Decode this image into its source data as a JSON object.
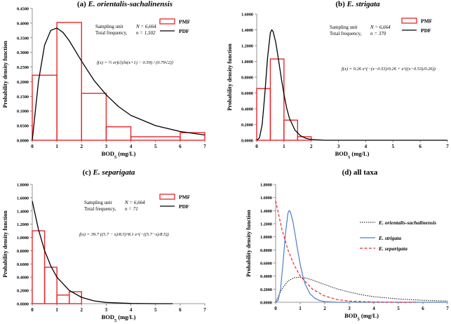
{
  "chart_data": [
    {
      "type": "bar",
      "panel_label": "(a)",
      "title": "E. orientalis-sachalinensis",
      "xlabel": "BOD5 (mg/L)",
      "ylabel": "Probability density function",
      "xlim": [
        0,
        7
      ],
      "ylim": [
        0,
        0.45
      ],
      "xticks": [
        "0",
        "1",
        "2",
        "3",
        "4",
        "5",
        "6",
        "7"
      ],
      "yticks": [
        "0.0000",
        "0.0500",
        "0.1000",
        "0.1500",
        "0.2000",
        "0.2500",
        "0.3000",
        "0.3500",
        "0.4000",
        "0.4500"
      ],
      "grid": false,
      "legend_position": "top-right",
      "info": [
        "Sampling unit",
        "N = 6,664",
        "Total frequency,",
        "n = 1,502"
      ],
      "formula": "f(x) = ½ erfc[(ln(x+1) − 0.59) / (0.79√2)]",
      "series": [
        {
          "name": "PMF",
          "kind": "histogram",
          "color": "#e8262a",
          "bins": [
            [
              0,
              1
            ],
            [
              1,
              2
            ],
            [
              2,
              3
            ],
            [
              3,
              4
            ],
            [
              4,
              6
            ],
            [
              6,
              7
            ]
          ],
          "values": [
            0.222,
            0.402,
            0.16,
            0.046,
            0.012,
            0.026
          ]
        },
        {
          "name": "PDF",
          "kind": "line",
          "color": "#000000",
          "x": [
            0,
            0.25,
            0.5,
            0.75,
            1.0,
            1.25,
            1.5,
            2.0,
            2.5,
            3.0,
            3.5,
            4.0,
            5.0,
            6.0,
            7.0
          ],
          "y": [
            0.0,
            0.2,
            0.325,
            0.375,
            0.383,
            0.368,
            0.34,
            0.27,
            0.205,
            0.155,
            0.115,
            0.085,
            0.05,
            0.03,
            0.018
          ]
        }
      ]
    },
    {
      "type": "bar",
      "panel_label": "(b)",
      "title": "E. strigata",
      "xlabel": "BOD5 (mg/L)",
      "ylabel": "Probability density function",
      "xlim": [
        0,
        7
      ],
      "ylim": [
        0,
        1.6
      ],
      "xticks": [
        "0",
        "1",
        "2",
        "3",
        "4",
        "5",
        "6",
        "7"
      ],
      "yticks": [
        "0.0000",
        "0.2000",
        "0.4000",
        "0.6000",
        "0.8000",
        "1.0000",
        "1.2000",
        "1.4000",
        "1.6000"
      ],
      "grid": false,
      "legend_position": "top-right",
      "info": [
        "Sampling unit",
        "N = 6,664",
        "Total frequency,",
        "n = 370"
      ],
      "formula": "f(x) = 0.26 e^(−(x−0.53)/0.26 + e^((x−0.53)/0.26))",
      "series": [
        {
          "name": "PMF",
          "kind": "histogram",
          "color": "#e8262a",
          "bins": [
            [
              0,
              0.5
            ],
            [
              0.5,
              1
            ],
            [
              1,
              1.5
            ],
            [
              1.5,
              2
            ]
          ],
          "values": [
            0.655,
            1.03,
            0.255,
            0.045
          ]
        },
        {
          "name": "PDF",
          "kind": "line",
          "color": "#000000",
          "x": [
            0,
            0.1,
            0.2,
            0.3,
            0.4,
            0.5,
            0.55,
            0.6,
            0.7,
            0.8,
            0.9,
            1.0,
            1.1,
            1.2,
            1.4,
            1.6,
            1.8,
            2.0,
            2.5,
            3.0,
            7.0
          ],
          "y": [
            0.0,
            0.03,
            0.2,
            0.6,
            1.05,
            1.36,
            1.4,
            1.38,
            1.24,
            1.02,
            0.79,
            0.58,
            0.41,
            0.28,
            0.13,
            0.06,
            0.025,
            0.01,
            0.0,
            0.0,
            0.0
          ]
        }
      ]
    },
    {
      "type": "bar",
      "panel_label": "(c)",
      "title": "E. separigata",
      "xlabel": "BOD5 (mg/L)",
      "ylabel": "Probability density function",
      "xlim": [
        0,
        7
      ],
      "ylim": [
        0,
        1.8
      ],
      "xticks": [
        "0",
        "1",
        "2",
        "3",
        "4",
        "5",
        "6",
        "7"
      ],
      "yticks": [
        "0.0000",
        "0.2000",
        "0.4000",
        "0.6000",
        "0.8000",
        "1.0000",
        "1.2000",
        "1.4000",
        "1.6000",
        "1.8000"
      ],
      "grid": false,
      "legend_position": "top-right",
      "info": [
        "Sampling unit",
        "N = 6,664",
        "Total frequency,",
        "n = 71"
      ],
      "formula": "f(x) = 39.7 ((5.7 − x)/8.5)^8.1 e^(−((5.7−x)/8.5))",
      "series": [
        {
          "name": "PMF",
          "kind": "histogram",
          "color": "#e8262a",
          "bins": [
            [
              0,
              0.5
            ],
            [
              0.5,
              1
            ],
            [
              1,
              1.5
            ],
            [
              1.5,
              2
            ]
          ],
          "values": [
            1.1,
            0.55,
            0.13,
            0.18
          ]
        },
        {
          "name": "PDF",
          "kind": "line",
          "color": "#000000",
          "x": [
            0,
            0.25,
            0.5,
            0.75,
            1.0,
            1.5,
            2.0,
            2.5,
            3.0,
            4.0,
            5.0,
            5.7
          ],
          "y": [
            1.55,
            1.12,
            0.8,
            0.57,
            0.4,
            0.2,
            0.095,
            0.042,
            0.018,
            0.003,
            0.0,
            0.0
          ]
        }
      ]
    },
    {
      "type": "line",
      "panel_label": "(d)",
      "title": "all taxa",
      "xlabel": "BOD5 (mg/L)",
      "ylabel": "Probability density function",
      "xlim": [
        0,
        7
      ],
      "ylim": [
        0,
        1.8
      ],
      "xticks": [
        "0",
        "1",
        "2",
        "3",
        "4",
        "5",
        "6",
        "7"
      ],
      "yticks": [
        "0.0000",
        "0.2000",
        "0.4000",
        "0.6000",
        "0.8000",
        "1.0000",
        "1.2000",
        "1.4000",
        "1.6000",
        "1.8000"
      ],
      "grid": false,
      "legend_position": "right",
      "series": [
        {
          "name": "E. orientalis-sachalinensis",
          "color": "#333333",
          "dash": "dotted",
          "x": [
            0,
            0.25,
            0.5,
            0.75,
            1.0,
            1.25,
            1.5,
            2.0,
            2.5,
            3.0,
            3.5,
            4.0,
            5.0,
            6.0,
            7.0
          ],
          "y": [
            0.0,
            0.2,
            0.325,
            0.375,
            0.383,
            0.368,
            0.34,
            0.27,
            0.205,
            0.155,
            0.115,
            0.085,
            0.05,
            0.03,
            0.018
          ]
        },
        {
          "name": "E. strigata",
          "color": "#4a7ec7",
          "dash": "solid",
          "x": [
            0,
            0.1,
            0.2,
            0.3,
            0.4,
            0.5,
            0.55,
            0.6,
            0.7,
            0.8,
            0.9,
            1.0,
            1.1,
            1.2,
            1.4,
            1.6,
            1.8,
            2.0,
            2.5,
            3.0,
            7.0
          ],
          "y": [
            0.0,
            0.03,
            0.2,
            0.6,
            1.05,
            1.36,
            1.4,
            1.38,
            1.24,
            1.02,
            0.79,
            0.58,
            0.41,
            0.28,
            0.13,
            0.06,
            0.025,
            0.01,
            0.0,
            0.0,
            0.0
          ]
        },
        {
          "name": "E. separigata",
          "color": "#e8262a",
          "dash": "dashed",
          "x": [
            0,
            0.25,
            0.5,
            0.75,
            1.0,
            1.5,
            2.0,
            2.5,
            3.0,
            4.0,
            5.0,
            5.7
          ],
          "y": [
            1.55,
            1.12,
            0.8,
            0.57,
            0.4,
            0.2,
            0.095,
            0.042,
            0.018,
            0.003,
            0.0,
            0.0
          ]
        }
      ]
    }
  ]
}
